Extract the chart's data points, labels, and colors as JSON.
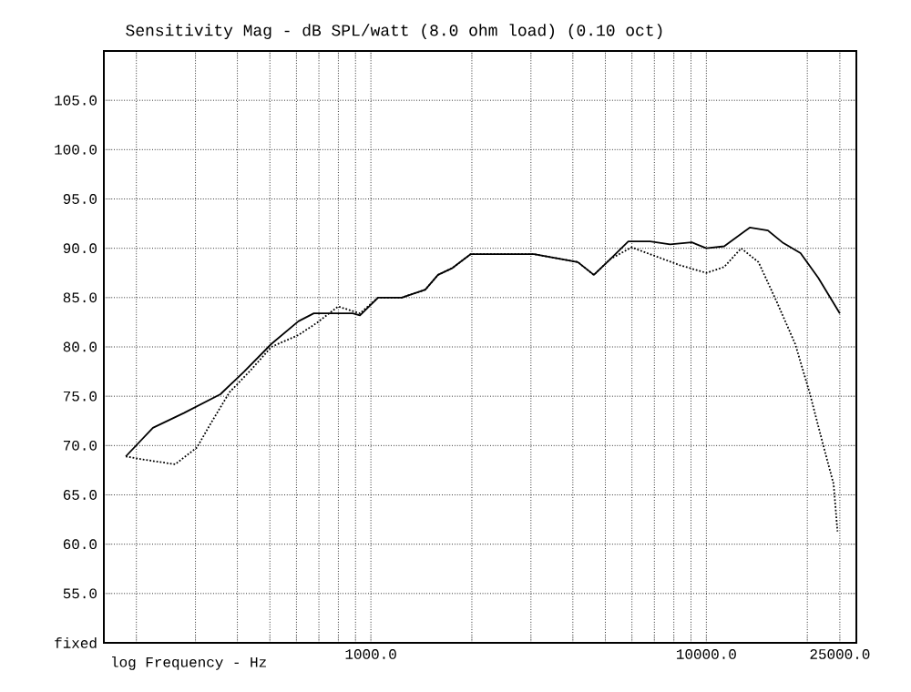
{
  "chart_data": {
    "type": "line",
    "title": "Sensitivity Mag - dB SPL/watt (8.0 ohm load) (0.10 oct)",
    "xlabel": "log Frequency - Hz",
    "log": "x",
    "grid": true,
    "xlim": [
      160,
      28000
    ],
    "xticks": [
      {
        "value": 200,
        "label": null
      },
      {
        "value": 300,
        "label": null
      },
      {
        "value": 400,
        "label": null
      },
      {
        "value": 500,
        "label": null
      },
      {
        "value": 600,
        "label": null
      },
      {
        "value": 700,
        "label": null
      },
      {
        "value": 800,
        "label": null
      },
      {
        "value": 900,
        "label": null
      },
      {
        "value": 1000,
        "label": "1000.0"
      },
      {
        "value": 2000,
        "label": null
      },
      {
        "value": 3000,
        "label": null
      },
      {
        "value": 4000,
        "label": null
      },
      {
        "value": 5000,
        "label": null
      },
      {
        "value": 6000,
        "label": null
      },
      {
        "value": 7000,
        "label": null
      },
      {
        "value": 8000,
        "label": null
      },
      {
        "value": 9000,
        "label": null
      },
      {
        "value": 10000,
        "label": "10000.0"
      },
      {
        "value": 20000,
        "label": null
      },
      {
        "value": 25000,
        "label": "25000.0"
      }
    ],
    "ylim": [
      50,
      110
    ],
    "yticks": [
      {
        "value": 50,
        "label": "fixed"
      },
      {
        "value": 55,
        "label": "55.0"
      },
      {
        "value": 60,
        "label": "60.0"
      },
      {
        "value": 65,
        "label": "65.0"
      },
      {
        "value": 70,
        "label": "70.0"
      },
      {
        "value": 75,
        "label": "75.0"
      },
      {
        "value": 80,
        "label": "80.0"
      },
      {
        "value": 85,
        "label": "85.0"
      },
      {
        "value": 90,
        "label": "90.0"
      },
      {
        "value": 95,
        "label": "95.0"
      },
      {
        "value": 100,
        "label": "100.0"
      },
      {
        "value": 105,
        "label": "105.0"
      }
    ],
    "series": [
      {
        "color": "#000000",
        "line_style": "solid",
        "x": [
          186,
          224,
          277,
          356,
          419,
          505,
          608,
          676,
          883,
          928,
          1051,
          1236,
          1453,
          1585,
          1751,
          1982,
          2389,
          3066,
          4138,
          4620,
          5172,
          5853,
          6797,
          7800,
          9050,
          10000,
          11300,
          13470,
          15260,
          16850,
          19090,
          21570,
          25000
        ],
        "values": [
          68.9,
          71.8,
          73.3,
          75.2,
          77.5,
          80.3,
          82.6,
          83.4,
          83.4,
          83.2,
          85.0,
          85.0,
          85.8,
          87.3,
          88.0,
          89.4,
          89.4,
          89.4,
          88.6,
          87.3,
          88.9,
          90.7,
          90.7,
          90.4,
          90.6,
          90.0,
          90.2,
          92.1,
          91.8,
          90.6,
          89.5,
          87.0,
          83.4
        ]
      },
      {
        "color": "#000000",
        "line_style": "dotted",
        "x": [
          186,
          208,
          261,
          303,
          334,
          379,
          440,
          505,
          608,
          688,
          799,
          928,
          1051,
          1236,
          1453,
          1585,
          1751,
          1982,
          2389,
          3066,
          4138,
          4620,
          5172,
          5985,
          6797,
          8312,
          10000,
          11300,
          12700,
          14300,
          16200,
          18400,
          20300,
          22400,
          23950,
          24600
        ],
        "values": [
          68.9,
          68.6,
          68.1,
          69.8,
          72.3,
          75.4,
          77.7,
          80.0,
          81.2,
          82.4,
          84.1,
          83.4,
          85.0,
          85.0,
          85.8,
          87.3,
          88.0,
          89.4,
          89.4,
          89.4,
          88.6,
          87.3,
          88.9,
          90.1,
          89.4,
          88.3,
          87.5,
          88.1,
          90.0,
          88.6,
          84.6,
          80.3,
          75.4,
          69.8,
          66.1,
          61.3
        ]
      }
    ]
  }
}
